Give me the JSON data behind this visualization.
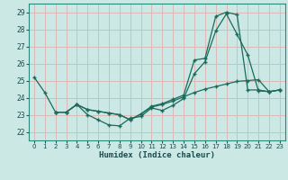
{
  "xlabel": "Humidex (Indice chaleur)",
  "bg_color": "#cbe8e5",
  "grid_color": "#ddb8b8",
  "line_color": "#1a6b5a",
  "xlim": [
    -0.5,
    23.5
  ],
  "ylim": [
    21.5,
    29.5
  ],
  "yticks": [
    22,
    23,
    24,
    25,
    26,
    27,
    28,
    29
  ],
  "xticks": [
    0,
    1,
    2,
    3,
    4,
    5,
    6,
    7,
    8,
    9,
    10,
    11,
    12,
    13,
    14,
    15,
    16,
    17,
    18,
    19,
    20,
    21,
    22,
    23
  ],
  "line1_x": [
    0,
    1,
    2,
    3,
    4,
    5,
    6,
    7,
    8,
    9,
    10,
    11,
    12,
    13,
    14,
    15,
    16,
    17,
    18,
    19,
    20,
    21,
    22,
    23
  ],
  "line1_y": [
    25.2,
    24.3,
    23.15,
    23.15,
    23.6,
    23.0,
    22.7,
    22.4,
    22.35,
    22.8,
    22.9,
    23.4,
    23.25,
    23.55,
    23.95,
    25.4,
    26.1,
    27.9,
    28.9,
    27.7,
    26.5,
    24.4,
    24.35,
    24.45
  ],
  "line2_x": [
    2,
    3,
    4,
    5,
    6,
    7,
    8,
    9,
    10,
    11,
    12,
    13,
    14,
    15,
    16,
    17,
    18,
    19,
    20,
    21,
    22,
    23
  ],
  "line2_y": [
    23.15,
    23.15,
    23.6,
    23.3,
    23.2,
    23.1,
    23.0,
    22.7,
    23.05,
    23.5,
    23.65,
    23.9,
    24.15,
    26.2,
    26.3,
    28.75,
    29.0,
    28.85,
    24.45,
    24.45,
    24.35,
    24.45
  ],
  "line3_x": [
    2,
    3,
    4,
    5,
    6,
    7,
    8,
    9,
    10,
    11,
    12,
    13,
    14,
    15,
    16,
    17,
    18,
    19,
    20,
    21,
    22,
    23
  ],
  "line3_y": [
    23.15,
    23.15,
    23.6,
    23.3,
    23.2,
    23.1,
    23.0,
    22.7,
    23.05,
    23.45,
    23.6,
    23.8,
    24.05,
    24.3,
    24.5,
    24.65,
    24.8,
    24.95,
    25.0,
    25.05,
    24.35,
    24.45
  ]
}
